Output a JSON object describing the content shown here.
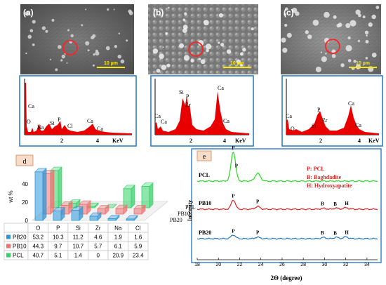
{
  "panels": {
    "a": {
      "tag": "(a)",
      "scale_bar": "10 µm",
      "edx_peaks": [
        "Ca",
        "O",
        "Na",
        "Si",
        "P",
        "Cl",
        "Ca",
        "Ca"
      ],
      "axis_ticks": [
        "2",
        "4"
      ],
      "axis_unit": "KeV"
    },
    "b": {
      "tag": "(b)",
      "scale_bar": "10 µm",
      "edx_peaks": [
        "Ca",
        "Ca",
        "Si",
        "P",
        "Zr",
        "Ca",
        "Ca"
      ],
      "axis_ticks": [
        "2",
        "4"
      ],
      "axis_unit": "KeV"
    },
    "c": {
      "tag": "(c)",
      "scale_bar": "10 µm",
      "edx_peaks": [
        "Ca",
        "O",
        "Si",
        "P",
        "Zr",
        "Ca",
        "Ca"
      ],
      "axis_ticks": [
        "2",
        "4"
      ],
      "axis_unit": "KeV"
    }
  },
  "chart_data": [
    {
      "type": "bar",
      "panel_label": "d",
      "ylabel": "wt %",
      "yticks": [
        0,
        20,
        40
      ],
      "categories": [
        "O",
        "P",
        "Si",
        "Zr",
        "Na",
        "Cl"
      ],
      "series": [
        {
          "name": "PB20",
          "color": "#2e96d8",
          "values": [
            53.2,
            10.3,
            11.2,
            4.6,
            1.9,
            1.6
          ]
        },
        {
          "name": "PB10",
          "color": "#f07070",
          "values": [
            44.3,
            9.7,
            10.7,
            5.7,
            6.1,
            5.9
          ]
        },
        {
          "name": "PCL",
          "color": "#33d166",
          "values": [
            40.7,
            5.1,
            1.4,
            0,
            20.9,
            23.4
          ]
        }
      ],
      "table": {
        "header": [
          "",
          "O",
          "P",
          "Si",
          "Zr",
          "Na",
          "Cl"
        ],
        "rows": [
          [
            "PB20",
            "53.2",
            "10.3",
            "11.2",
            "4.6",
            "1.9",
            "1.6"
          ],
          [
            "PB10",
            "44.3",
            "9.7",
            "10.7",
            "5.7",
            "6.1",
            "5.9"
          ],
          [
            "PCL",
            "40.7",
            "5.1",
            "1.4",
            "0",
            "20.9",
            "23.4"
          ]
        ]
      }
    },
    {
      "type": "line",
      "panel_label": "e",
      "xlabel": "2Θ (degree)",
      "ylabel": "Intensity",
      "xlim": [
        18,
        35
      ],
      "xticks": [
        18,
        20,
        22,
        24,
        26,
        28,
        30,
        32,
        34
      ],
      "legend": [
        "P: PCL",
        "B: Baghdadite",
        "H: Hydroxyapatite"
      ],
      "series": [
        {
          "name": "PCL",
          "color": "#22dd22",
          "offset": 2.0,
          "peaks": [
            [
              21.4,
              0.95,
              0.3
            ],
            [
              23.7,
              0.25,
              0.35
            ]
          ]
        },
        {
          "name": "PB10",
          "color": "#e82020",
          "offset": 1.0,
          "peaks": [
            [
              21.4,
              0.3,
              0.28
            ],
            [
              23.7,
              0.09,
              0.3
            ],
            [
              29.9,
              0.03,
              0.3
            ],
            [
              31.1,
              0.04,
              0.25
            ],
            [
              32.0,
              0.05,
              0.3
            ]
          ]
        },
        {
          "name": "PB20",
          "color": "#1f78c8",
          "offset": 0.0,
          "peaks": [
            [
              21.4,
              0.12,
              0.3
            ],
            [
              23.7,
              0.05,
              0.3
            ],
            [
              29.9,
              0.04,
              0.3
            ],
            [
              31.1,
              0.05,
              0.25
            ],
            [
              32.0,
              0.06,
              0.3
            ]
          ]
        }
      ],
      "peak_labels": [
        {
          "series": "PCL",
          "x": 21.4,
          "text": "P"
        },
        {
          "series": "PCL",
          "x": 21.7,
          "text": "P"
        },
        {
          "series": "PB10",
          "x": 21.4,
          "text": "P"
        },
        {
          "series": "PB10",
          "x": 23.7,
          "text": "P"
        },
        {
          "series": "PB10",
          "x": 29.8,
          "text": "B"
        },
        {
          "series": "PB10",
          "x": 31.0,
          "text": "B"
        },
        {
          "series": "PB10",
          "x": 32.1,
          "text": "H"
        },
        {
          "series": "PB20",
          "x": 21.4,
          "text": "P"
        },
        {
          "series": "PB20",
          "x": 23.7,
          "text": "P"
        },
        {
          "series": "PB20",
          "x": 29.8,
          "text": "B"
        },
        {
          "series": "PB20",
          "x": 31.0,
          "text": "B"
        },
        {
          "series": "PB20",
          "x": 32.1,
          "text": "H"
        }
      ]
    }
  ]
}
